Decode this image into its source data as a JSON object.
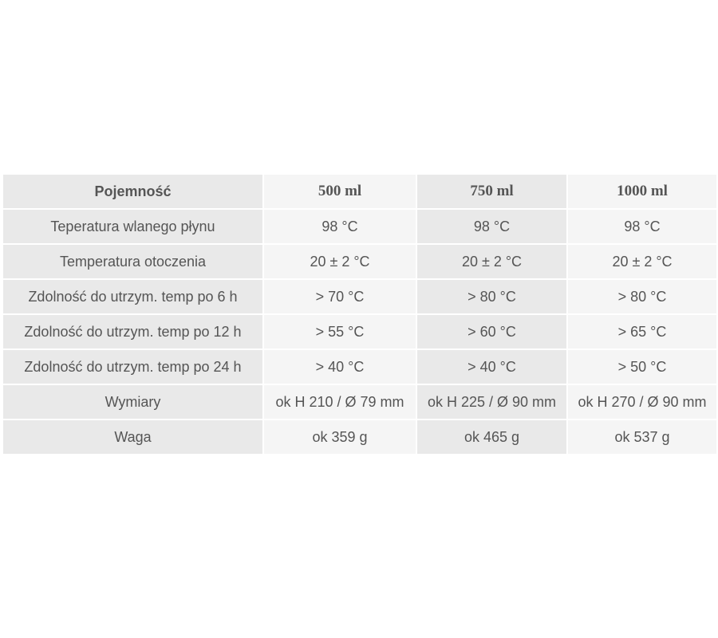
{
  "table": {
    "headers": [
      "Pojemność",
      "500 ml",
      "750 ml",
      "1000 ml"
    ],
    "rows": [
      [
        "Teperatura wlanego płynu",
        "98 °C",
        "98 °C",
        "98 °C"
      ],
      [
        "Temperatura otoczenia",
        "20 ± 2 °C",
        "20 ± 2 °C",
        "20 ± 2 °C"
      ],
      [
        "Zdolność do utrzym. temp po 6 h",
        "> 70 °C",
        "> 80 °C",
        "> 80 °C"
      ],
      [
        "Zdolność do utrzym. temp po 12 h",
        "> 55 °C",
        "> 60 °C",
        "> 65 °C"
      ],
      [
        "Zdolność do utrzym. temp po 24 h",
        "> 40 °C",
        "> 40 °C",
        "> 50 °C"
      ],
      [
        "Wymiary",
        "ok H 210 / Ø 79 mm",
        "ok H 225 / Ø 90 mm",
        "ok H 270 / Ø 90 mm"
      ],
      [
        "Waga",
        "ok 359 g",
        "ok 465 g",
        "ok 537 g"
      ]
    ]
  },
  "colors": {
    "cell_gray": "#e9e9e9",
    "cell_light": "#f5f5f5",
    "text": "#555555"
  }
}
